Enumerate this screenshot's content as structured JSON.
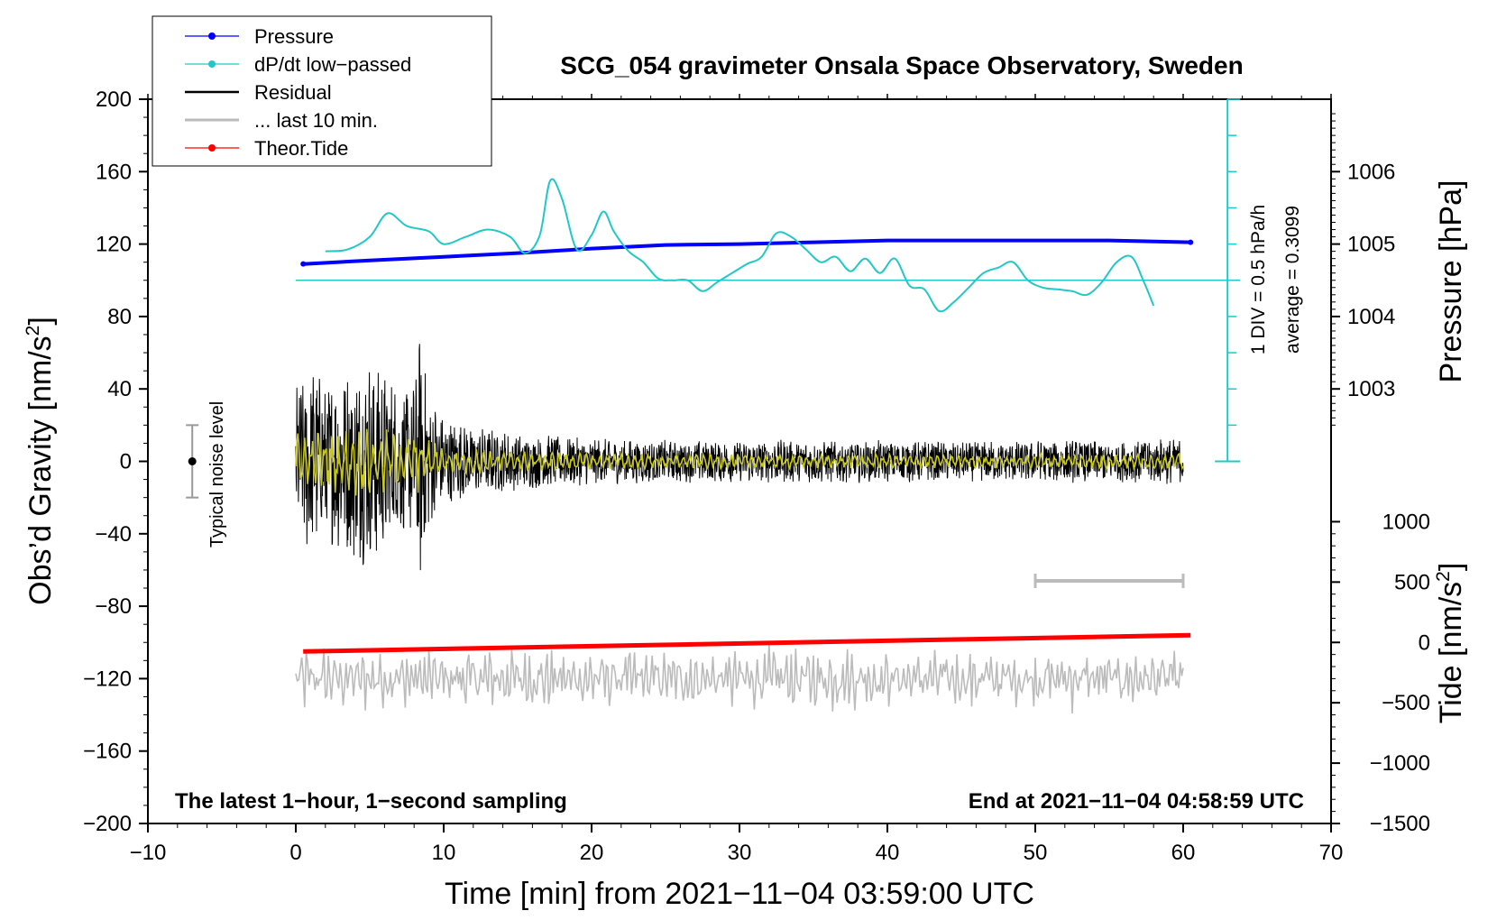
{
  "chart_data": {
    "type": "line",
    "title": "SCG_054 gravimeter Onsala Space Observatory, Sweden",
    "xlabel": "Time [min] from 2021−11−04 03:59:00 UTC",
    "ylabel_left_main": "Obs’d Gravity [nm/s",
    "ylabel_left_sup": "2",
    "ylabel_left_close": "]",
    "ylabel_right_pressure": "Pressure [hPa]",
    "ylabel_right_tide_main": "Tide [nm/s",
    "ylabel_right_tide_sup": "2",
    "ylabel_right_tide_close": "]",
    "xlim": [
      -10,
      70
    ],
    "ylim": [
      -200,
      200
    ],
    "x_ticks": [
      -10,
      0,
      10,
      20,
      30,
      40,
      50,
      60,
      70
    ],
    "x_tick_labels": [
      "−10",
      "0",
      "10",
      "20",
      "30",
      "40",
      "50",
      "60",
      "70"
    ],
    "y_ticks": [
      200,
      160,
      120,
      80,
      40,
      0,
      -40,
      -80,
      -120,
      -160,
      -200
    ],
    "y_tick_labels": [
      "200",
      "160",
      "120",
      "80",
      "40",
      "0",
      "−40",
      "−80",
      "−120",
      "−160",
      "−200"
    ],
    "pressure_axis": {
      "ticks": [
        1003,
        1004,
        1005,
        1006
      ],
      "tick_labels": [
        "1003",
        "1004",
        "1005",
        "1006"
      ],
      "ref_value": 1005,
      "ref_gravity": 120,
      "gravity_per_hpa": 40
    },
    "tide_axis": {
      "ticks": [
        1000,
        500,
        0,
        -500,
        -1000,
        -1500
      ],
      "tick_labels": [
        "1000",
        "500",
        "0",
        "−500",
        "−1000",
        "−1500"
      ],
      "gravity_at_zero": -100,
      "gravity_per_unit": 0.066667
    },
    "legend": {
      "position": "top-left",
      "entries": [
        {
          "label": "Pressure",
          "color": "#0000ff",
          "marker": true
        },
        {
          "label": "dP/dt low−passed",
          "color": "#20c8c8",
          "marker": true
        },
        {
          "label": "Residual",
          "color": "#000000",
          "marker": false
        },
        {
          "label": "... last 10 min.",
          "color": "#bbbbbb",
          "marker": false
        },
        {
          "label": "Theor.Tide",
          "color": "#ff0000",
          "marker": true
        }
      ]
    },
    "noise_level": {
      "label": "Typical noise level",
      "x": -7,
      "center": 0,
      "low": -20,
      "high": 20
    },
    "dpdt_scale": {
      "label": "1 DIV = 0.5 hPa/h",
      "average_label": "average = 0.3099",
      "axis_x": 63,
      "bottom": 0,
      "top": 200,
      "baseline": 100,
      "divisions": 10
    },
    "window_bar": {
      "x_start": 50,
      "x_end": 60,
      "y": -66
    },
    "footer_left": "The latest 1−hour, 1−second sampling",
    "footer_right": "End at 2021−11−04 04:58:59 UTC",
    "series": [
      {
        "name": "Pressure",
        "color": "#0000ff",
        "x": [
          0.5,
          5,
          10,
          15,
          20,
          25,
          30,
          35,
          40,
          45,
          50,
          55,
          60.5
        ],
        "y": [
          109,
          111,
          113,
          115,
          117.5,
          119.5,
          120,
          121,
          122,
          122,
          122,
          122,
          121
        ]
      },
      {
        "name": "dP/dt low-passed",
        "color": "#20c8c8",
        "x": [
          2,
          3.5,
          5,
          6.2,
          7.5,
          9,
          10,
          11.5,
          13,
          14.5,
          15.5,
          16.5,
          17.2,
          18,
          19,
          20,
          20.8,
          21.5,
          22.5,
          23.5,
          24.5,
          25.5,
          26.5,
          27.5,
          28.5,
          29.5,
          30.5,
          31.5,
          32.5,
          33.5,
          34.5,
          35.5,
          36.5,
          37.5,
          38.5,
          39.5,
          40.5,
          41.5,
          42.5,
          43.5,
          44.5,
          45.5,
          46.5,
          47.5,
          48.5,
          49.5,
          50.5,
          51.5,
          52.5,
          53.5,
          54.5,
          55.5,
          56.5,
          57.3,
          58
        ],
        "y": [
          116,
          117,
          124,
          137,
          130,
          127,
          120,
          124,
          128,
          124,
          115,
          125,
          155,
          145,
          117,
          125,
          138,
          127,
          116,
          110,
          101,
          100,
          100,
          94,
          99,
          104,
          109,
          113,
          126,
          124,
          117,
          110,
          113,
          105,
          112,
          104,
          112,
          97,
          95,
          83,
          88,
          96,
          104,
          107,
          110,
          100,
          96,
          95,
          94,
          92,
          99,
          110,
          113,
          100,
          86
        ]
      },
      {
        "name": "Theor.Tide",
        "color": "#ff0000",
        "x": [
          0.5,
          60.5
        ],
        "y": [
          -105,
          -96
        ]
      }
    ],
    "residual_envelope": {
      "description": "1-second residual gravity, amplitude vs time",
      "x": [
        0,
        1,
        2,
        3,
        4,
        5,
        6,
        7,
        8,
        8.5,
        9,
        10,
        12,
        15,
        20,
        25,
        30,
        35,
        40,
        45,
        50,
        55,
        60
      ],
      "amplitude": [
        45,
        55,
        45,
        50,
        55,
        60,
        55,
        40,
        45,
        80,
        40,
        25,
        20,
        16,
        13,
        12,
        12,
        12,
        12,
        11,
        12,
        12,
        13
      ]
    },
    "last_10_min": {
      "offset": -120,
      "amplitude": 20,
      "x_start": 0,
      "x_end": 60
    }
  }
}
